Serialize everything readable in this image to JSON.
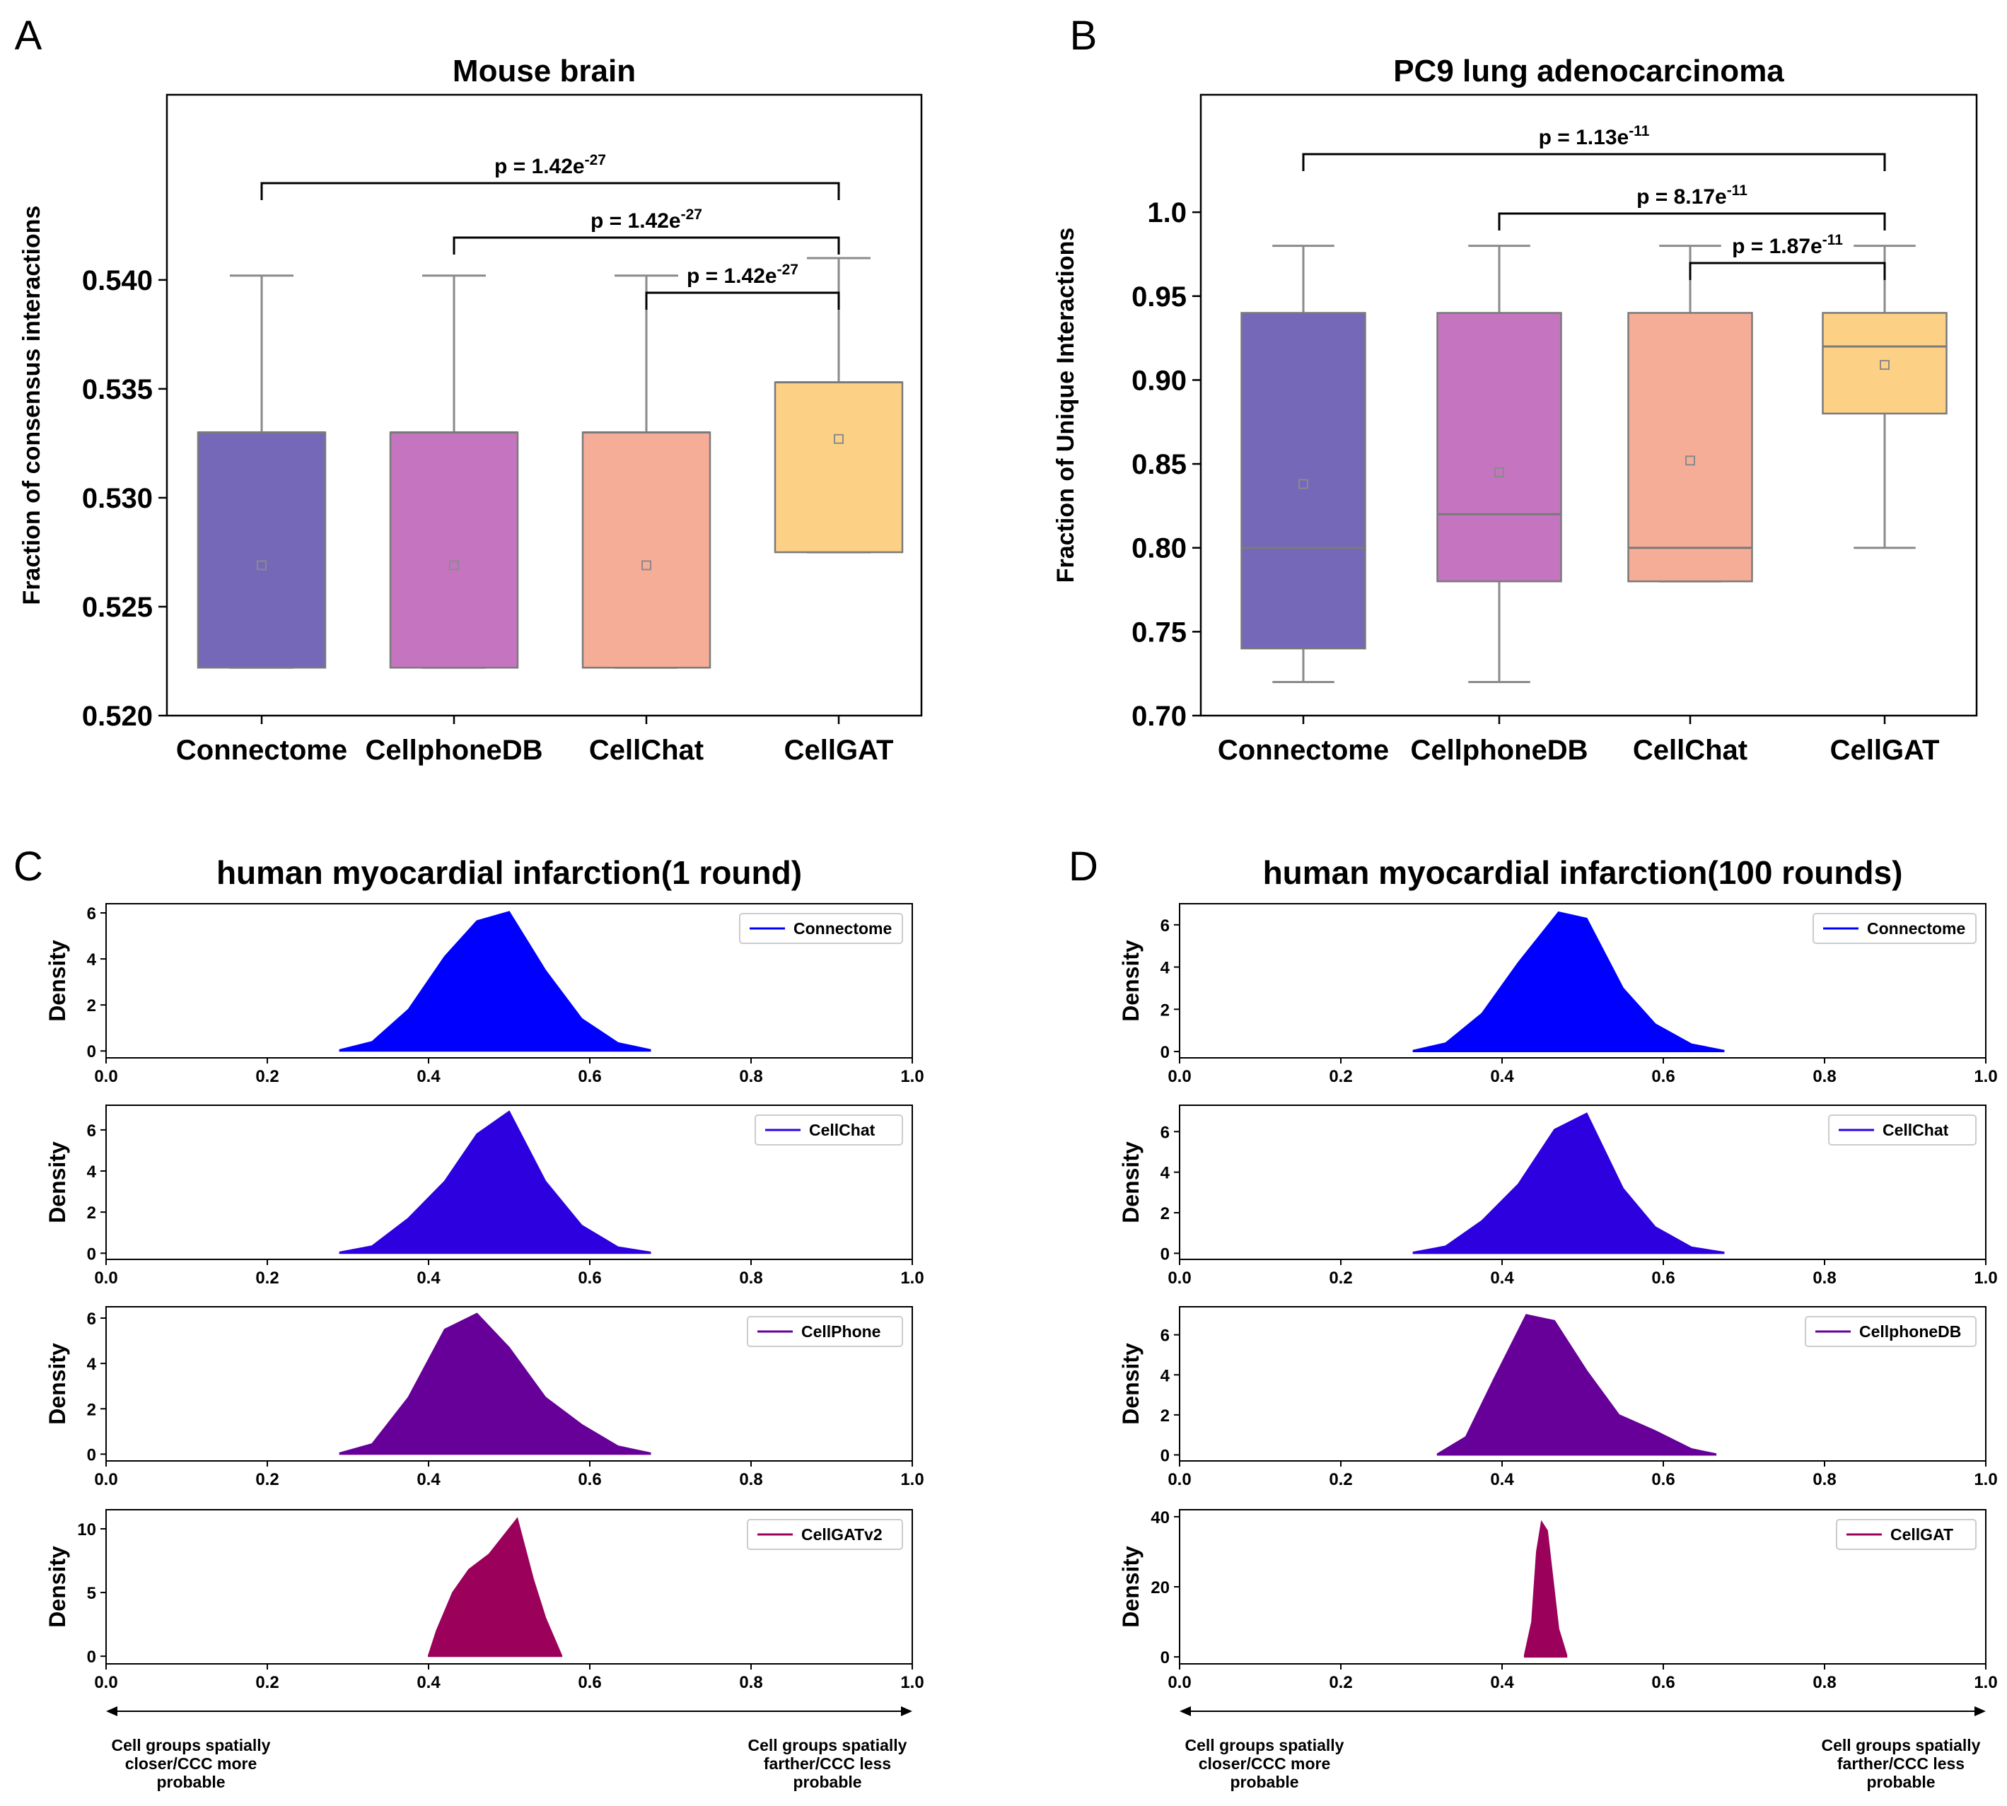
{
  "panel_labels": [
    "A",
    "B",
    "C",
    "D"
  ],
  "chart_data": [
    {
      "id": "A",
      "type": "box",
      "title": "Mouse brain",
      "ylabel": "Fraction of consensus interactions",
      "xlabel": "",
      "ylim": [
        0.52,
        0.5485
      ],
      "yticks": [
        "0.520",
        "0.525",
        "0.530",
        "0.535",
        "0.540"
      ],
      "ytick_values": [
        0.52,
        0.525,
        0.53,
        0.535,
        0.54
      ],
      "categories": [
        "Connectome",
        "CellphoneDB",
        "CellChat",
        "CellGAT"
      ],
      "colors": [
        "#7568b8",
        "#c574c0",
        "#f5ad97",
        "#fdd185"
      ],
      "boxes": [
        {
          "whisker_low": 0.5222,
          "q1": 0.5222,
          "median": 0.533,
          "q3": 0.533,
          "whisker_high": 0.5402,
          "mean": 0.5269
        },
        {
          "whisker_low": 0.5222,
          "q1": 0.5222,
          "median": 0.533,
          "q3": 0.533,
          "whisker_high": 0.5402,
          "mean": 0.5269
        },
        {
          "whisker_low": 0.5222,
          "q1": 0.5222,
          "median": 0.533,
          "q3": 0.533,
          "whisker_high": 0.5402,
          "mean": 0.5269
        },
        {
          "whisker_low": 0.5275,
          "q1": 0.5275,
          "median": 0.5353,
          "q3": 0.5353,
          "whisker_high": 0.541,
          "mean": 0.5327
        }
      ],
      "annotations": [
        {
          "from": 0,
          "to": 3,
          "level": 3,
          "text": "p = 1.42e",
          "exp": "-27"
        },
        {
          "from": 1,
          "to": 3,
          "level": 2,
          "text": "p = 1.42e",
          "exp": "-27"
        },
        {
          "from": 2,
          "to": 3,
          "level": 1,
          "text": "p = 1.42e",
          "exp": "-27"
        }
      ]
    },
    {
      "id": "B",
      "type": "box",
      "title": "PC9 lung adenocarcinoma",
      "ylabel": "Fraction of Unique Interactions",
      "xlabel": "",
      "ylim": [
        0.7,
        1.07
      ],
      "yticks": [
        "0.70",
        "0.75",
        "0.80",
        "0.85",
        "0.90",
        "0.95",
        "1.0"
      ],
      "ytick_values": [
        0.7,
        0.75,
        0.8,
        0.85,
        0.9,
        0.95,
        1.0
      ],
      "categories": [
        "Connectome",
        "CellphoneDB",
        "CellChat",
        "CellGAT"
      ],
      "colors": [
        "#7568b8",
        "#c574c0",
        "#f5ad97",
        "#fdd185"
      ],
      "boxes": [
        {
          "whisker_low": 0.72,
          "q1": 0.74,
          "median": 0.8,
          "q3": 0.94,
          "whisker_high": 0.98,
          "mean": 0.838
        },
        {
          "whisker_low": 0.72,
          "q1": 0.78,
          "median": 0.82,
          "q3": 0.94,
          "whisker_high": 0.98,
          "mean": 0.845
        },
        {
          "whisker_low": 0.78,
          "q1": 0.78,
          "median": 0.8,
          "q3": 0.94,
          "whisker_high": 0.98,
          "mean": 0.852
        },
        {
          "whisker_low": 0.8,
          "q1": 0.88,
          "median": 0.92,
          "q3": 0.94,
          "whisker_high": 0.98,
          "mean": 0.909
        }
      ],
      "annotations": [
        {
          "from": 0,
          "to": 3,
          "level": 3,
          "text": "p = 1.13e",
          "exp": "-11"
        },
        {
          "from": 1,
          "to": 3,
          "level": 2,
          "text": "p = 8.17e",
          "exp": "-11"
        },
        {
          "from": 2,
          "to": 3,
          "level": 1,
          "text": "p = 1.87e",
          "exp": "-11"
        }
      ]
    },
    {
      "id": "C",
      "type": "area",
      "title": "human myocardial infarction(1 round)",
      "xlabel": "",
      "ylabel": "Density",
      "xlim": [
        0.0,
        1.0
      ],
      "xticks": [
        "0.0",
        "0.2",
        "0.4",
        "0.6",
        "0.8",
        "1.0"
      ],
      "left_note": [
        "Cell groups spatially",
        "closer/CCC more",
        "probable"
      ],
      "right_note": [
        "Cell groups spatially",
        "farther/CCC less",
        "probable"
      ],
      "series": [
        {
          "name": "Connectome",
          "color": "#0000ff",
          "ylim": [
            -0.3,
            6.4
          ],
          "yticks": [
            0,
            2,
            4,
            6
          ],
          "x": [
            0.29,
            0.33,
            0.375,
            0.42,
            0.46,
            0.5,
            0.545,
            0.59,
            0.635,
            0.675
          ],
          "y": [
            0.05,
            0.4,
            1.8,
            4.1,
            5.65,
            6.05,
            3.5,
            1.4,
            0.35,
            0.05
          ]
        },
        {
          "name": "CellChat",
          "color": "#2d00e0",
          "ylim": [
            -0.3,
            7.2
          ],
          "yticks": [
            0,
            2,
            4,
            6
          ],
          "x": [
            0.29,
            0.33,
            0.375,
            0.42,
            0.46,
            0.5,
            0.545,
            0.59,
            0.635,
            0.675
          ],
          "y": [
            0.05,
            0.35,
            1.7,
            3.5,
            5.8,
            6.9,
            3.5,
            1.35,
            0.3,
            0.05
          ]
        },
        {
          "name": "CellPhone",
          "color": "#660099",
          "ylim": [
            -0.3,
            6.5
          ],
          "yticks": [
            0,
            2,
            4,
            6
          ],
          "x": [
            0.29,
            0.33,
            0.375,
            0.42,
            0.46,
            0.5,
            0.545,
            0.59,
            0.635,
            0.675
          ],
          "y": [
            0.05,
            0.45,
            2.5,
            5.5,
            6.2,
            4.7,
            2.5,
            1.3,
            0.35,
            0.05
          ]
        },
        {
          "name": "CellGATv2",
          "color": "#9b005a",
          "ylim": [
            -0.6,
            11.5
          ],
          "yticks": [
            0,
            5,
            10
          ],
          "x": [
            0.4,
            0.41,
            0.43,
            0.45,
            0.475,
            0.5,
            0.51,
            0.53,
            0.545,
            0.565
          ],
          "y": [
            0.05,
            2.0,
            5.0,
            6.8,
            8.0,
            10.0,
            10.8,
            6.0,
            3.0,
            0.05
          ]
        }
      ]
    },
    {
      "id": "D",
      "type": "area",
      "title": "human myocardial infarction(100 rounds)",
      "xlabel": "",
      "ylabel": "Density",
      "xlim": [
        0.0,
        1.0
      ],
      "xticks": [
        "0.0",
        "0.2",
        "0.4",
        "0.6",
        "0.8",
        "1.0"
      ],
      "left_note": [
        "Cell groups spatially",
        "closer/CCC more",
        "probable"
      ],
      "right_note": [
        "Cell groups spatially",
        "farther/CCC less",
        "probable"
      ],
      "series": [
        {
          "name": "Connectome",
          "color": "#0000ff",
          "ylim": [
            -0.3,
            7.0
          ],
          "yticks": [
            0,
            2,
            4,
            6
          ],
          "x": [
            0.29,
            0.33,
            0.375,
            0.42,
            0.47,
            0.505,
            0.55,
            0.59,
            0.635,
            0.675
          ],
          "y": [
            0.05,
            0.4,
            1.8,
            4.2,
            6.6,
            6.3,
            3.0,
            1.3,
            0.35,
            0.05
          ]
        },
        {
          "name": "CellChat",
          "color": "#2d00e0",
          "ylim": [
            -0.3,
            7.3
          ],
          "yticks": [
            0,
            2,
            4,
            6
          ],
          "x": [
            0.29,
            0.33,
            0.375,
            0.42,
            0.465,
            0.505,
            0.55,
            0.59,
            0.635,
            0.675
          ],
          "y": [
            0.05,
            0.35,
            1.6,
            3.4,
            6.1,
            6.9,
            3.2,
            1.3,
            0.3,
            0.05
          ]
        },
        {
          "name": "CellphoneDB",
          "color": "#660099",
          "ylim": [
            -0.3,
            7.4
          ],
          "yticks": [
            0,
            2,
            4,
            6
          ],
          "x": [
            0.32,
            0.355,
            0.39,
            0.43,
            0.465,
            0.505,
            0.545,
            0.59,
            0.635,
            0.665
          ],
          "y": [
            0.05,
            0.9,
            3.8,
            7.0,
            6.7,
            4.2,
            2.0,
            1.2,
            0.3,
            0.05
          ]
        },
        {
          "name": "CellGAT",
          "color": "#9b005a",
          "ylim": [
            -2,
            42
          ],
          "yticks": [
            0,
            20,
            40
          ],
          "x": [
            0.428,
            0.437,
            0.443,
            0.449,
            0.456,
            0.463,
            0.47,
            0.48
          ],
          "y": [
            0.5,
            10,
            30,
            38.5,
            36,
            22,
            8,
            0.5
          ]
        }
      ]
    }
  ]
}
